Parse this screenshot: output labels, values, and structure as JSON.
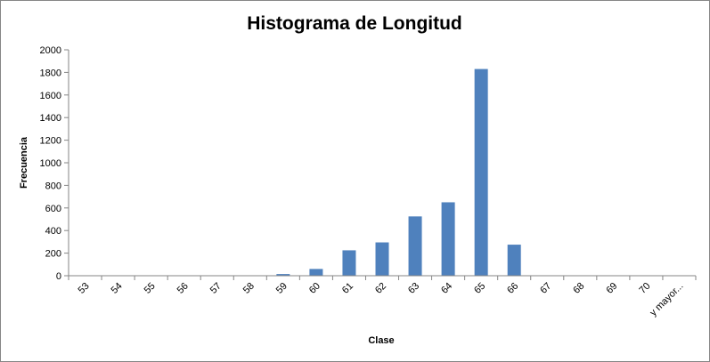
{
  "chart_data": {
    "type": "bar",
    "title": "Histograma de Longitud",
    "xlabel": "Clase",
    "ylabel": "Frecuencia",
    "categories": [
      "53",
      "54",
      "55",
      "56",
      "57",
      "58",
      "59",
      "60",
      "61",
      "62",
      "63",
      "64",
      "65",
      "66",
      "67",
      "68",
      "69",
      "70",
      "y mayor..."
    ],
    "values": [
      0,
      0,
      0,
      0,
      0,
      0,
      15,
      60,
      225,
      295,
      525,
      650,
      1830,
      275,
      0,
      0,
      0,
      0,
      0
    ],
    "ylim": [
      0,
      2000
    ],
    "yticks": [
      0,
      200,
      400,
      600,
      800,
      1000,
      1200,
      1400,
      1600,
      1800,
      2000
    ],
    "grid": false,
    "legend": "none",
    "bar_color": "#4F81BD"
  }
}
